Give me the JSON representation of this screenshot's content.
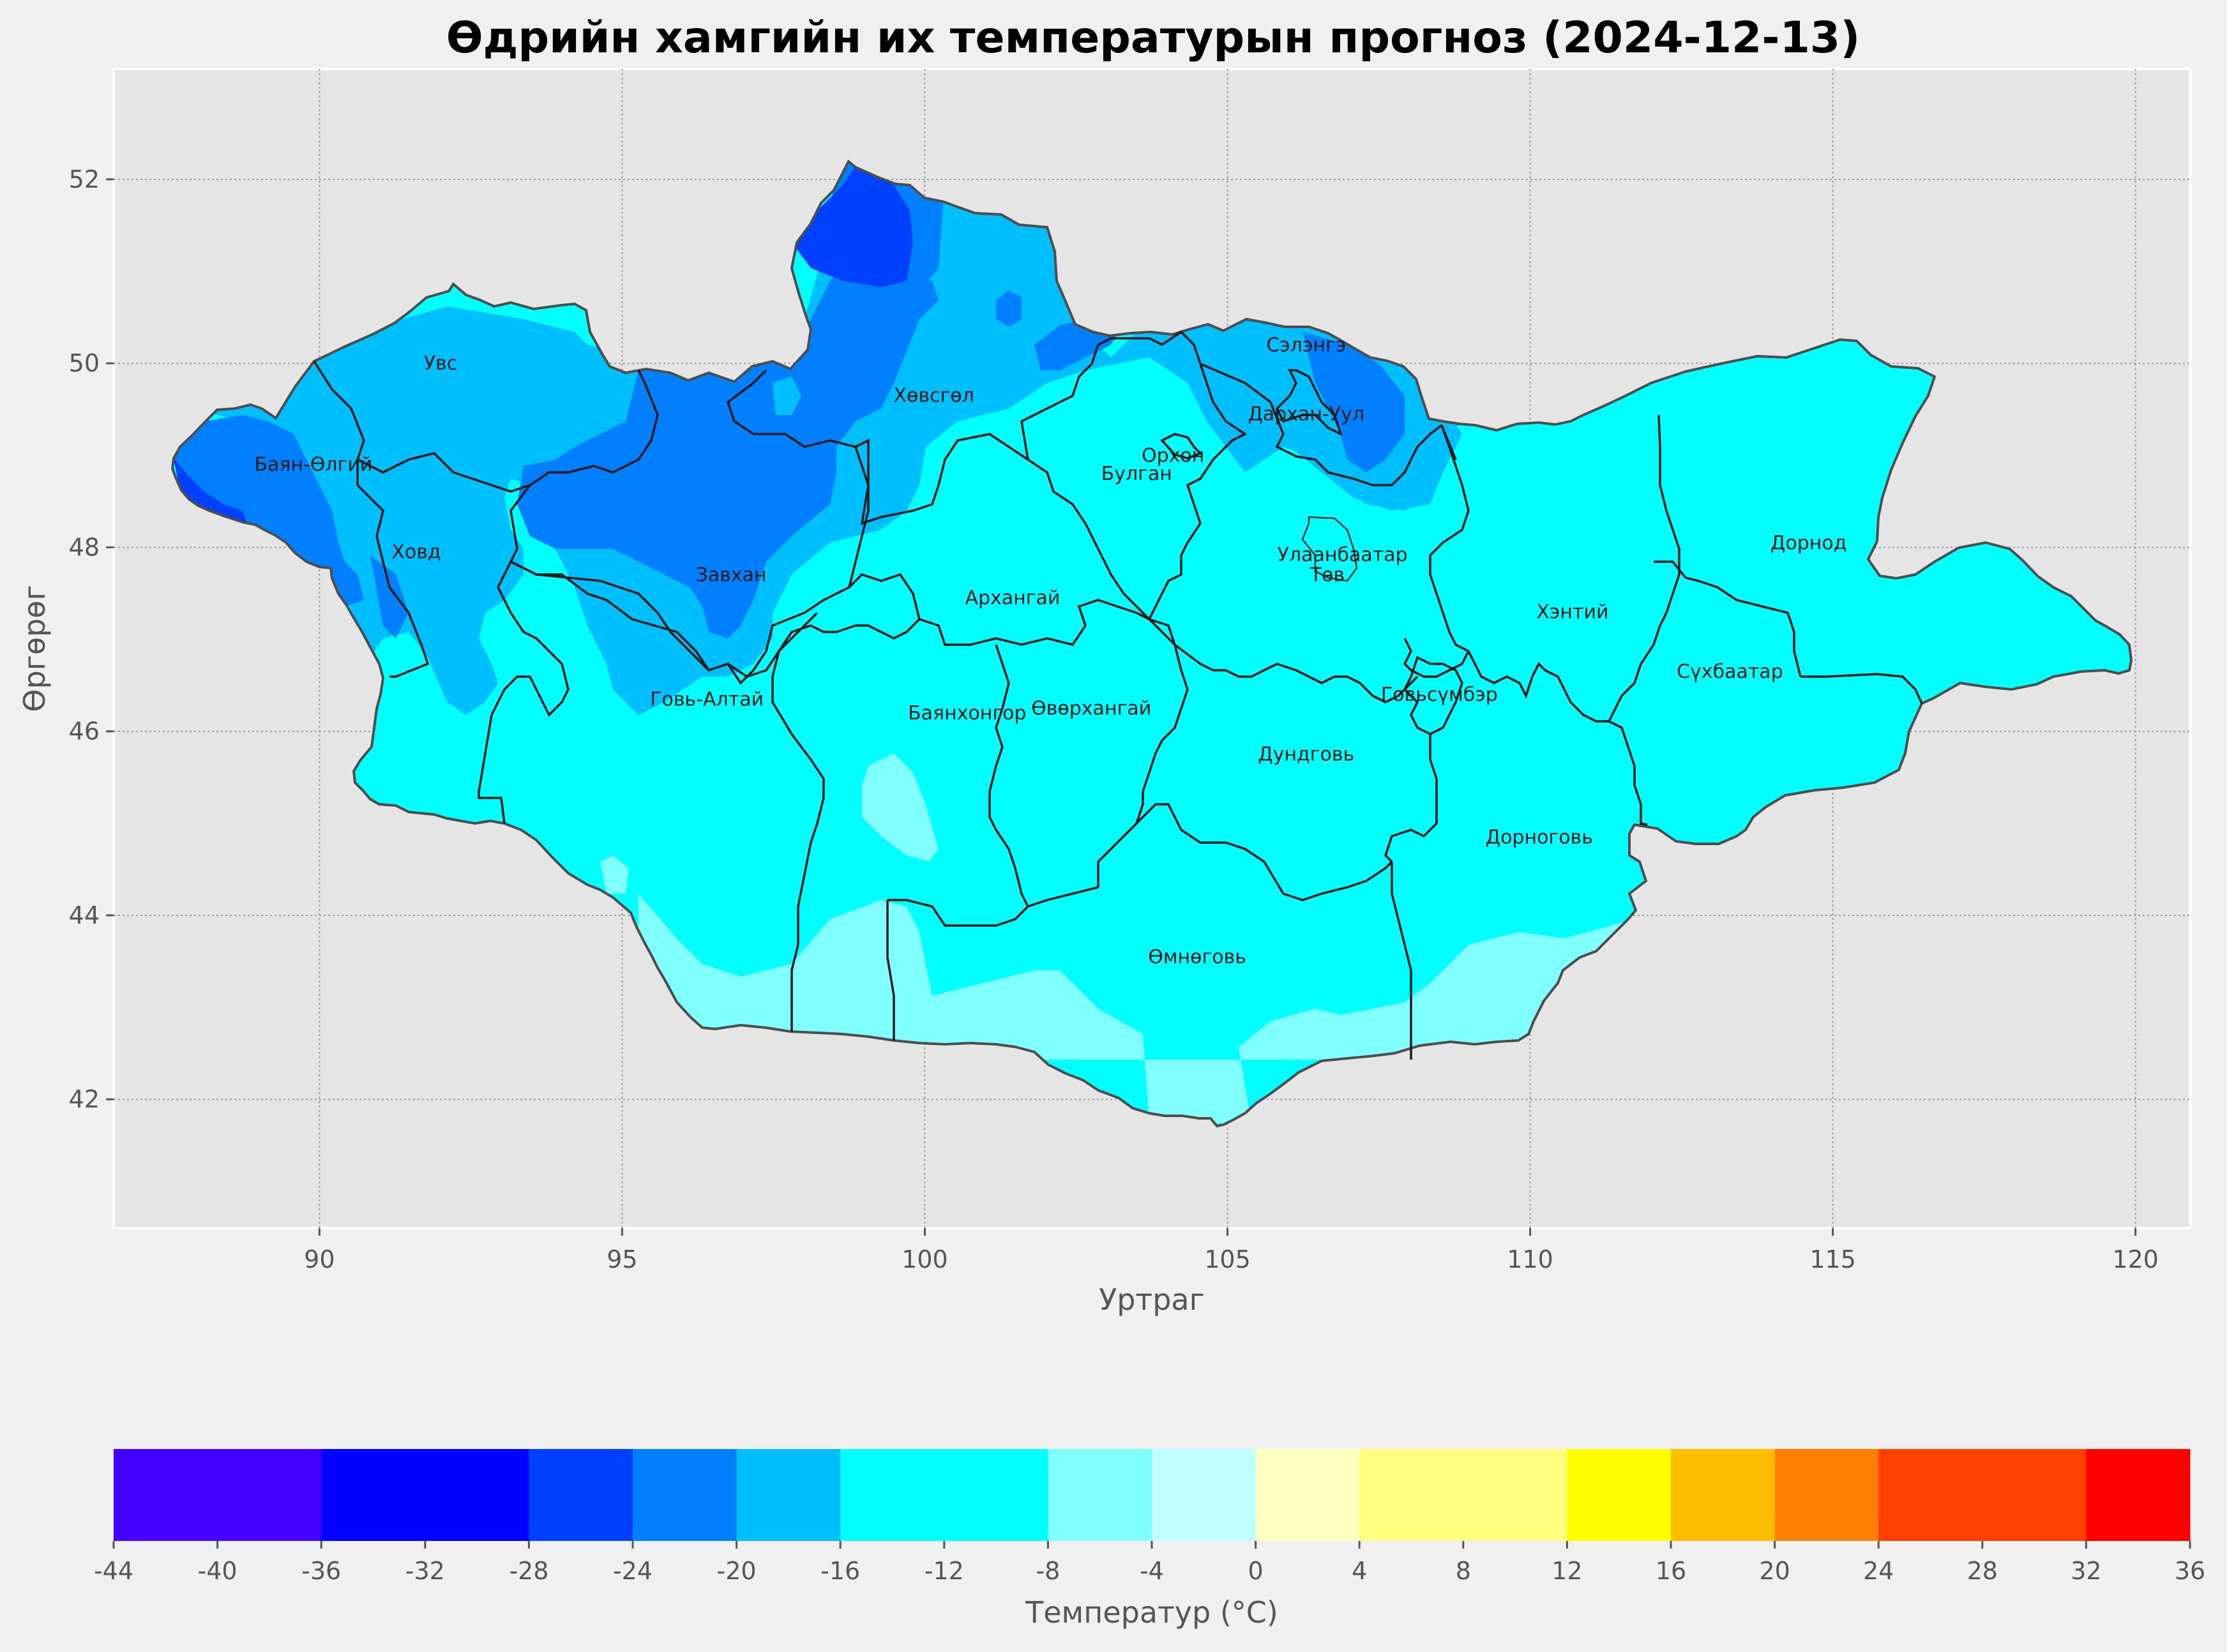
{
  "title": "Өдрийн хамгийн их температурын прогноз (2024-12-13)",
  "axes": {
    "xlabel": "Уртраг",
    "ylabel": "Өргөрөг",
    "xlim": [
      86.6,
      120.9
    ],
    "ylim": [
      40.6,
      53.2
    ],
    "xticks": [
      "90",
      "95",
      "100",
      "105",
      "110",
      "115",
      "120"
    ],
    "yticks": [
      "42",
      "44",
      "46",
      "48",
      "50",
      "52"
    ],
    "grid": true
  },
  "colorbar": {
    "label": "Температур (°C)",
    "ticks": [
      "-44",
      "-40",
      "-36",
      "-32",
      "-28",
      "-24",
      "-20",
      "-16",
      "-12",
      "-8",
      "-4",
      "0",
      "4",
      "8",
      "12",
      "16",
      "20",
      "24",
      "28",
      "32",
      "36"
    ],
    "bins": [
      {
        "from": -44,
        "to": -36,
        "color": "#4400ff"
      },
      {
        "from": -36,
        "to": -28,
        "color": "#0000ff"
      },
      {
        "from": -28,
        "to": -24,
        "color": "#0040ff"
      },
      {
        "from": -24,
        "to": -20,
        "color": "#0080ff"
      },
      {
        "from": -20,
        "to": -16,
        "color": "#00bfff"
      },
      {
        "from": -16,
        "to": -8,
        "color": "#00ffff"
      },
      {
        "from": -8,
        "to": -4,
        "color": "#80ffff"
      },
      {
        "from": -4,
        "to": 0,
        "color": "#bfffff"
      },
      {
        "from": 0,
        "to": 4,
        "color": "#ffffbf"
      },
      {
        "from": 4,
        "to": 12,
        "color": "#ffff80"
      },
      {
        "from": 12,
        "to": 16,
        "color": "#ffff00"
      },
      {
        "from": 16,
        "to": 20,
        "color": "#ffbf00"
      },
      {
        "from": 20,
        "to": 24,
        "color": "#ff8000"
      },
      {
        "from": 24,
        "to": 32,
        "color": "#ff4000"
      },
      {
        "from": 32,
        "to": 36,
        "color": "#ff0000"
      }
    ]
  },
  "provinces": [
    {
      "name": "Увс",
      "lon": 92.0,
      "lat": 50.0
    },
    {
      "name": "Баян-Өлгий",
      "lon": 89.9,
      "lat": 48.9
    },
    {
      "name": "Ховд",
      "lon": 91.6,
      "lat": 47.95
    },
    {
      "name": "Хөвсгөл",
      "lon": 100.15,
      "lat": 49.65
    },
    {
      "name": "Завхан",
      "lon": 96.8,
      "lat": 47.7
    },
    {
      "name": "Сэлэнгэ",
      "lon": 106.3,
      "lat": 50.2
    },
    {
      "name": "Дархан-Уул",
      "lon": 106.3,
      "lat": 49.45
    },
    {
      "name": "Орхон",
      "lon": 104.1,
      "lat": 49.0
    },
    {
      "name": "Булган",
      "lon": 103.5,
      "lat": 48.8
    },
    {
      "name": "Улаанбаатар",
      "lon": 106.9,
      "lat": 47.92
    },
    {
      "name": "Төв",
      "lon": 106.65,
      "lat": 47.7
    },
    {
      "name": "Архангай",
      "lon": 101.45,
      "lat": 47.45
    },
    {
      "name": "Дорнод",
      "lon": 114.6,
      "lat": 48.05
    },
    {
      "name": "Хэнтий",
      "lon": 110.7,
      "lat": 47.3
    },
    {
      "name": "Сүхбаатар",
      "lon": 113.3,
      "lat": 46.65
    },
    {
      "name": "Говь-Алтай",
      "lon": 96.4,
      "lat": 46.35
    },
    {
      "name": "Баянхонгор",
      "lon": 100.7,
      "lat": 46.2
    },
    {
      "name": "Өвөрхангай",
      "lon": 102.75,
      "lat": 46.25
    },
    {
      "name": "Говьсүмбэр",
      "lon": 108.5,
      "lat": 46.4
    },
    {
      "name": "Дундговь",
      "lon": 106.3,
      "lat": 45.75
    },
    {
      "name": "Дорноговь",
      "lon": 110.15,
      "lat": 44.85
    },
    {
      "name": "Өмнөговь",
      "lon": 104.5,
      "lat": 43.55
    }
  ]
}
